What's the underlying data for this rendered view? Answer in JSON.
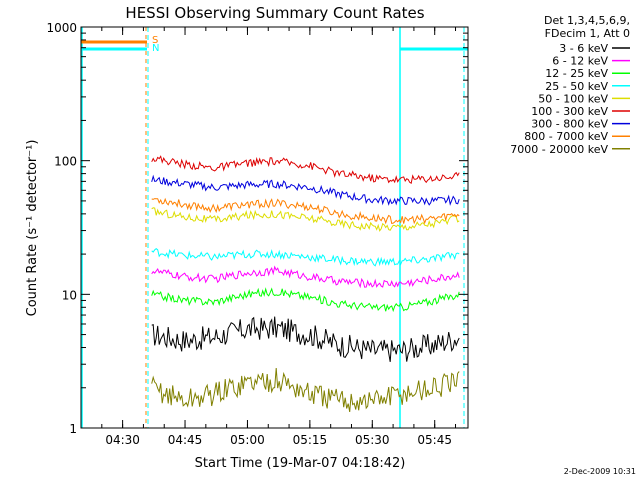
{
  "chart_data": {
    "type": "line",
    "title": "HESSI Observing Summary Count Rates",
    "xlabel": "Start Time (19-Mar-07 04:18:42)",
    "ylabel": "Count Rate (s⁻¹ detector⁻¹)",
    "y_scale": "log",
    "ylim": [
      1,
      1000
    ],
    "xlim": [
      "04:20",
      "05:53"
    ],
    "x_ticks": [
      "04:30",
      "04:45",
      "05:00",
      "05:15",
      "05:30",
      "05:45"
    ],
    "y_ticks": [
      "1",
      "10",
      "100",
      "1000"
    ],
    "grid": false,
    "legend_position": "right",
    "legend_header": [
      "Det 1,3,4,5,6,9,",
      "FDecim 1, Att 0"
    ],
    "series": [
      {
        "name": "3 - 6 keV",
        "color": "#000000",
        "x": [
          "04:37",
          "04:45",
          "04:52",
          "05:00",
          "05:07",
          "05:15",
          "05:22",
          "05:30",
          "05:37",
          "05:45",
          "05:51"
        ],
        "values": [
          5.0,
          4.5,
          4.8,
          5.5,
          5.6,
          5.0,
          4.2,
          3.8,
          3.8,
          4.2,
          4.8
        ]
      },
      {
        "name": "6 - 12 keV",
        "color": "#ff00ff",
        "x": [
          "04:37",
          "04:45",
          "04:52",
          "05:00",
          "05:07",
          "05:15",
          "05:22",
          "05:30",
          "05:37",
          "05:45",
          "05:51"
        ],
        "values": [
          15,
          13.5,
          13,
          14.5,
          15,
          13.5,
          12.5,
          12,
          12,
          13,
          14
        ]
      },
      {
        "name": "12 - 25 keV",
        "color": "#00ff00",
        "x": [
          "04:37",
          "04:45",
          "04:52",
          "05:00",
          "05:07",
          "05:15",
          "05:22",
          "05:30",
          "05:37",
          "05:45",
          "05:51"
        ],
        "values": [
          10,
          9,
          8.8,
          10,
          10.5,
          9.5,
          8.5,
          8,
          8,
          9,
          10
        ]
      },
      {
        "name": "25 - 50 keV",
        "color": "#00ffff",
        "x": [
          "04:37",
          "04:45",
          "04:52",
          "05:00",
          "05:07",
          "05:15",
          "05:22",
          "05:30",
          "05:37",
          "05:45",
          "05:51"
        ],
        "values": [
          21,
          19.5,
          19,
          20,
          20,
          19,
          18,
          17.5,
          17.5,
          18.5,
          20
        ]
      },
      {
        "name": "50 - 100 keV",
        "color": "#dddd00",
        "x": [
          "04:37",
          "04:45",
          "04:52",
          "05:00",
          "05:07",
          "05:15",
          "05:22",
          "05:30",
          "05:37",
          "05:45",
          "05:51"
        ],
        "values": [
          42,
          38,
          36,
          39,
          40,
          37,
          34,
          32,
          32,
          34,
          37
        ]
      },
      {
        "name": "100 - 300 keV",
        "color": "#dd0000",
        "x": [
          "04:37",
          "04:45",
          "04:52",
          "05:00",
          "05:07",
          "05:15",
          "05:22",
          "05:30",
          "05:37",
          "05:45",
          "05:51"
        ],
        "values": [
          105,
          94,
          88,
          96,
          99,
          92,
          80,
          74,
          72,
          74,
          77
        ]
      },
      {
        "name": "300 - 800 keV",
        "color": "#0000dd",
        "x": [
          "04:37",
          "04:45",
          "04:52",
          "05:00",
          "05:07",
          "05:15",
          "05:22",
          "05:30",
          "05:37",
          "05:45",
          "05:51"
        ],
        "values": [
          72,
          67,
          63,
          66,
          67,
          63,
          56,
          51,
          50,
          50,
          51
        ]
      },
      {
        "name": "800 - 7000 keV",
        "color": "#ff8000",
        "x": [
          "04:37",
          "04:45",
          "04:52",
          "05:00",
          "05:07",
          "05:15",
          "05:22",
          "05:30",
          "05:37",
          "05:45",
          "05:51"
        ],
        "values": [
          52,
          47,
          44,
          47,
          48,
          45,
          40,
          37,
          36,
          37,
          40
        ]
      },
      {
        "name": "7000 - 20000 keV",
        "color": "#808000",
        "x": [
          "04:37",
          "04:45",
          "04:52",
          "05:00",
          "05:07",
          "05:15",
          "05:22",
          "05:30",
          "05:37",
          "05:45",
          "05:51"
        ],
        "values": [
          2.0,
          1.6,
          1.8,
          2.2,
          2.3,
          1.8,
          1.6,
          1.6,
          1.8,
          2.0,
          2.2
        ]
      }
    ],
    "flag_markers": {
      "S": {
        "label": "S",
        "color": "#ff8000"
      },
      "N": {
        "label": "N",
        "color": "#00ffff"
      }
    },
    "footer_date": "2-Dec-2009 10:31"
  }
}
